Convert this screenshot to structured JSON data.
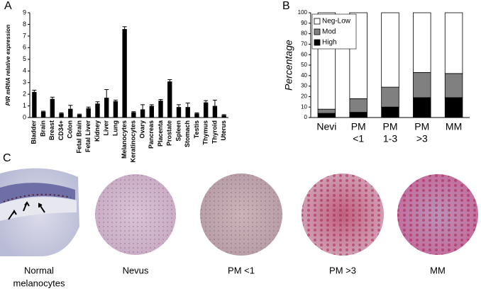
{
  "panels": {
    "a": "A",
    "b": "B",
    "c": "C"
  },
  "chart_data": [
    {
      "type": "bar",
      "ylabel": "PIR mRNA relative expression",
      "categories": [
        "Bladder",
        "Brain",
        "Breast",
        "CD34+",
        "Colon",
        "Fetal Brain",
        "Fetal Liver",
        "Kidney",
        "Liver",
        "Lung",
        "Melanocytes",
        "Keratinocytes",
        "Ovary",
        "Pancreas",
        "Placenta",
        "Prostate",
        "Spleen",
        "Stomach",
        "Testis",
        "Thymus",
        "Thyroid",
        "Uterus"
      ],
      "values": [
        2.2,
        0.5,
        1.6,
        0.35,
        0.75,
        0.25,
        0.8,
        1.2,
        1.7,
        1.4,
        7.6,
        0.45,
        0.7,
        1.0,
        1.45,
        3.1,
        0.9,
        0.9,
        0.35,
        1.3,
        1.0,
        0.2
      ],
      "errors": [
        0.15,
        0.05,
        0.15,
        0.05,
        0.3,
        0.05,
        0.1,
        0.15,
        0.7,
        0.1,
        0.2,
        0.05,
        0.4,
        0.1,
        0.1,
        0.15,
        0.2,
        0.35,
        0.05,
        0.15,
        0.5,
        0.05
      ],
      "color": "#000000",
      "ylim": [
        0,
        9
      ],
      "yticks": [
        0,
        1,
        2,
        3,
        4,
        5,
        6,
        7,
        8,
        9
      ]
    },
    {
      "type": "bar",
      "stacked": true,
      "ylabel": "Percentage",
      "categories": [
        [
          "Nevi"
        ],
        [
          "PM",
          "<1"
        ],
        [
          "PM",
          "1-3"
        ],
        [
          "PM",
          ">3"
        ],
        [
          "MM"
        ]
      ],
      "series": [
        {
          "name": "High",
          "color": "#000000",
          "values": [
            4,
            5,
            10,
            19,
            19
          ]
        },
        {
          "name": "Mod",
          "color": "#808080",
          "values": [
            4,
            13,
            19,
            24,
            23
          ]
        },
        {
          "name": "Neg-Low",
          "color": "#ffffff",
          "values": [
            92,
            82,
            71,
            57,
            58
          ]
        }
      ],
      "ylim": [
        0,
        100
      ],
      "yticks": [
        0,
        10,
        20,
        30,
        40,
        50,
        60,
        70,
        80,
        90,
        100
      ],
      "legend": "top-left"
    }
  ],
  "images": [
    {
      "caption": [
        "Normal",
        "melanocytes"
      ]
    },
    {
      "caption": [
        "Nevus"
      ]
    },
    {
      "caption": [
        "PM <1"
      ]
    },
    {
      "caption": [
        "PM  >3"
      ]
    },
    {
      "caption": [
        "MM"
      ]
    }
  ]
}
